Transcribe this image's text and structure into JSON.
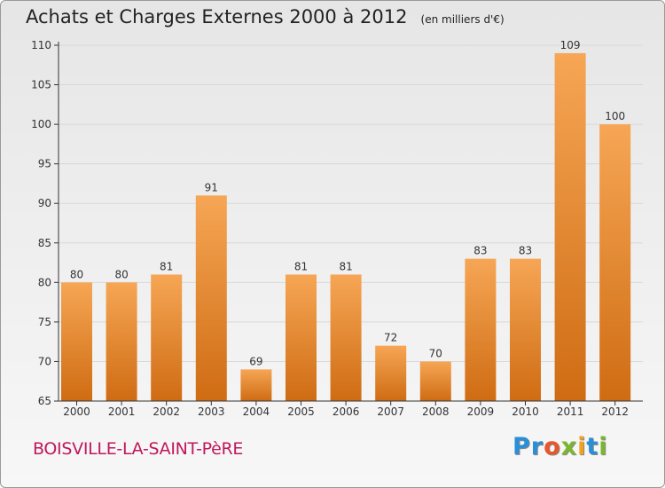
{
  "title": "Achats et Charges Externes 2000 à 2012",
  "subtitle": "(en milliers d'€)",
  "town": "BOISVILLE-LA-SAINT-PèRE",
  "logo": {
    "letters": [
      "P",
      "r",
      "o",
      "x",
      "i",
      "t",
      "i"
    ],
    "colors": [
      "#2a8fd6",
      "#2a8fd6",
      "#e8572a",
      "#7bb72e",
      "#f2a21b",
      "#2a8fd6",
      "#7bb72e"
    ]
  },
  "colors": {
    "bar_top": "#f6a655",
    "bar_bottom": "#cf6c13",
    "grid": "#d8d8d8",
    "axis": "#333333"
  },
  "chart_data": {
    "type": "bar",
    "categories": [
      "2000",
      "2001",
      "2002",
      "2003",
      "2004",
      "2005",
      "2006",
      "2007",
      "2008",
      "2009",
      "2010",
      "2011",
      "2012"
    ],
    "values": [
      80,
      80,
      81,
      91,
      69,
      81,
      81,
      72,
      70,
      83,
      83,
      109,
      100
    ],
    "data_labels": [
      "80",
      "80",
      "81",
      "91",
      "69",
      "81",
      "81",
      "72",
      "70",
      "83",
      "83",
      "109",
      "100"
    ],
    "title": "Achats et Charges Externes 2000 à 2012",
    "ylim": [
      65,
      110
    ],
    "yticks": [
      65,
      70,
      75,
      80,
      85,
      90,
      95,
      100,
      105,
      110
    ],
    "ytick_labels": [
      "65",
      "70",
      "75",
      "80",
      "85",
      "90",
      "95",
      "100",
      "105",
      "110"
    ],
    "grid": true,
    "legend": "none"
  }
}
